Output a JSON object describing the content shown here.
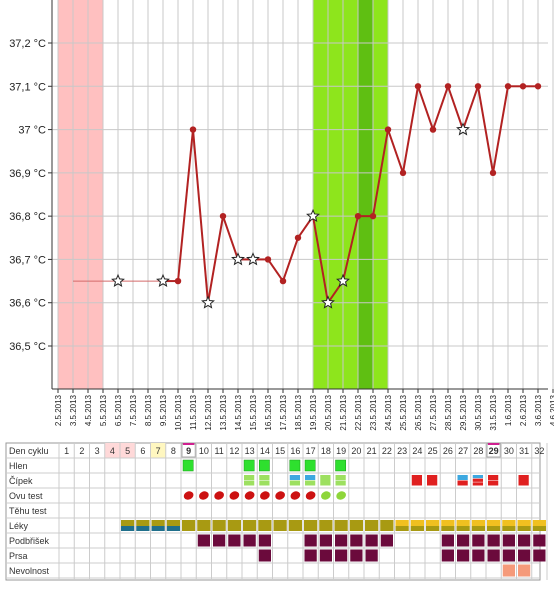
{
  "chart_data": {
    "type": "line",
    "ylabel_unit": "°C",
    "y_ticks": [
      "37,2 °C",
      "37,1 °C",
      "37 °C",
      "36,9 °C",
      "36,8 °C",
      "36,7 °C",
      "36,6 °C",
      "36,5 °C"
    ],
    "y_tick_values": [
      37.2,
      37.1,
      37.0,
      36.9,
      36.8,
      36.7,
      36.6,
      36.5
    ],
    "ylim": [
      36.4,
      37.3
    ],
    "x_labels": [
      "2.5.2013",
      "3.5.2013",
      "4.5.2013",
      "5.5.2013",
      "6.5.2013",
      "7.5.2013",
      "8.5.2013",
      "9.5.2013",
      "10.5.2013",
      "11.5.2013",
      "12.5.2013",
      "13.5.2013",
      "14.5.2013",
      "15.5.2013",
      "16.5.2013",
      "17.5.2013",
      "18.5.2013",
      "19.5.2013",
      "20.5.2013",
      "21.5.2013",
      "22.5.2013",
      "23.5.2013",
      "24.5.2013",
      "25.5.2013",
      "26.5.2013",
      "27.5.2013",
      "28.5.2013",
      "29.5.2013",
      "30.5.2013",
      "31.5.2013",
      "1.6.2013",
      "2.6.2013",
      "3.6.2013",
      "4.6.2013"
    ],
    "series": [
      {
        "color": "#b22222",
        "points": [
          {
            "x": "3.5.2013",
            "y": 36.65,
            "marker": "none"
          },
          {
            "x": "6.5.2013",
            "y": 36.65,
            "marker": "star"
          },
          {
            "x": "9.5.2013",
            "y": 36.65,
            "marker": "star"
          },
          {
            "x": "10.5.2013",
            "y": 36.65,
            "marker": "dot"
          },
          {
            "x": "11.5.2013",
            "y": 37.0,
            "marker": "dot"
          },
          {
            "x": "12.5.2013",
            "y": 36.6,
            "marker": "star"
          },
          {
            "x": "13.5.2013",
            "y": 36.8,
            "marker": "dot"
          },
          {
            "x": "14.5.2013",
            "y": 36.7,
            "marker": "star"
          },
          {
            "x": "15.5.2013",
            "y": 36.7,
            "marker": "star"
          },
          {
            "x": "16.5.2013",
            "y": 36.7,
            "marker": "dot"
          },
          {
            "x": "17.5.2013",
            "y": 36.65,
            "marker": "dot"
          },
          {
            "x": "18.5.2013",
            "y": 36.75,
            "marker": "dot"
          },
          {
            "x": "19.5.2013",
            "y": 36.8,
            "marker": "star"
          },
          {
            "x": "20.5.2013",
            "y": 36.6,
            "marker": "star"
          },
          {
            "x": "21.5.2013",
            "y": 36.65,
            "marker": "star"
          },
          {
            "x": "22.5.2013",
            "y": 36.8,
            "marker": "dot"
          },
          {
            "x": "23.5.2013",
            "y": 36.8,
            "marker": "dot"
          },
          {
            "x": "24.5.2013",
            "y": 37.0,
            "marker": "dot"
          },
          {
            "x": "25.5.2013",
            "y": 36.9,
            "marker": "dot"
          },
          {
            "x": "26.5.2013",
            "y": 37.1,
            "marker": "dot"
          },
          {
            "x": "27.5.2013",
            "y": 37.0,
            "marker": "dot"
          },
          {
            "x": "28.5.2013",
            "y": 37.1,
            "marker": "dot"
          },
          {
            "x": "29.5.2013",
            "y": 37.0,
            "marker": "star"
          },
          {
            "x": "30.5.2013",
            "y": 37.1,
            "marker": "dot"
          },
          {
            "x": "31.5.2013",
            "y": 36.9,
            "marker": "dot"
          },
          {
            "x": "1.6.2013",
            "y": 37.1,
            "marker": "dot"
          },
          {
            "x": "2.6.2013",
            "y": 37.1,
            "marker": "dot"
          },
          {
            "x": "3.6.2013",
            "y": 37.1,
            "marker": "dot"
          }
        ],
        "thin_segment_until": "6.5.2013"
      }
    ],
    "bands": [
      {
        "from": "2.5.2013",
        "to": "5.5.2013",
        "color": "#ffc0c0"
      },
      {
        "from": "19.5.2013",
        "to": "24.5.2013",
        "color": "#8ee51c"
      },
      {
        "from": "22.5.2013",
        "to": "23.5.2013",
        "color": "#5fbf12"
      }
    ],
    "grid": true
  },
  "cycle_table": {
    "rows": [
      "Den cyklu",
      "Hlen",
      "Čípek",
      "Ovu test",
      "Těhu test",
      "Léky",
      "Podbřišek",
      "Prsa",
      "Nevolnost"
    ],
    "days": [
      1,
      2,
      3,
      4,
      5,
      6,
      7,
      8,
      9,
      10,
      11,
      12,
      13,
      14,
      15,
      16,
      17,
      18,
      19,
      20,
      21,
      22,
      23,
      24,
      25,
      26,
      27,
      28,
      29,
      30,
      31,
      32
    ],
    "day_bg": {
      "4": "#ffd9d9",
      "5": "#ffd9d9",
      "7": "#fff7c0"
    },
    "day_marked": [
      9,
      29
    ],
    "colors": {
      "hlen": "#2ee02e",
      "cipek_blue": "#3da8e0",
      "cipek_red": "#e02020",
      "cipek_green": "#9de060",
      "ovu_red": "#cc1111",
      "ovu_green": "#8ed63a",
      "leky_olive": "#a89a12",
      "leky_teal": "#1f6f8b",
      "leky_yellow": "#f0c020",
      "podbrisek": "#6b0a3c",
      "nevolnost": "#f59a7a"
    },
    "hlen": [
      9,
      13,
      14,
      16,
      17,
      19
    ],
    "cipek": {
      "13": [
        "green",
        "green"
      ],
      "14": [
        "green",
        "green"
      ],
      "16": [
        "blue",
        "green"
      ],
      "17": [
        "blue",
        "green"
      ],
      "18": [
        "green"
      ],
      "19": [
        "green",
        "green"
      ],
      "24": [
        "red"
      ],
      "25": [
        "red"
      ],
      "27": [
        "blue",
        "red"
      ],
      "28": [
        "blue",
        "red",
        "red"
      ],
      "29": [
        "red",
        "red"
      ],
      "31": [
        "red"
      ]
    },
    "ovu_red": [
      9,
      10,
      11,
      12,
      13,
      14,
      15,
      16,
      17
    ],
    "ovu_green": [
      18,
      19
    ],
    "leky": {
      "5": "olive_teal",
      "6": "olive_teal",
      "7": "olive_teal",
      "8": "olive_teal",
      "9": "olive",
      "10": "olive",
      "11": "olive",
      "12": "olive",
      "13": "olive",
      "14": "olive",
      "15": "olive",
      "16": "olive",
      "17": "olive",
      "18": "olive",
      "19": "olive",
      "20": "olive",
      "21": "olive",
      "22": "olive",
      "23": "yellow",
      "24": "yellow",
      "25": "yellow",
      "26": "yellow",
      "27": "yellow",
      "28": "yellow",
      "29": "yellow",
      "30": "yellow",
      "31": "yellow",
      "32": "yellow"
    },
    "podbrisek": [
      10,
      11,
      12,
      13,
      14,
      17,
      18,
      19,
      20,
      21,
      22,
      26,
      27,
      28,
      29,
      30,
      31,
      32
    ],
    "prsa": [
      14,
      17,
      18,
      19,
      20,
      21,
      26,
      27,
      28,
      29,
      30,
      31,
      32
    ],
    "nevolnost": [
      30,
      31
    ]
  }
}
